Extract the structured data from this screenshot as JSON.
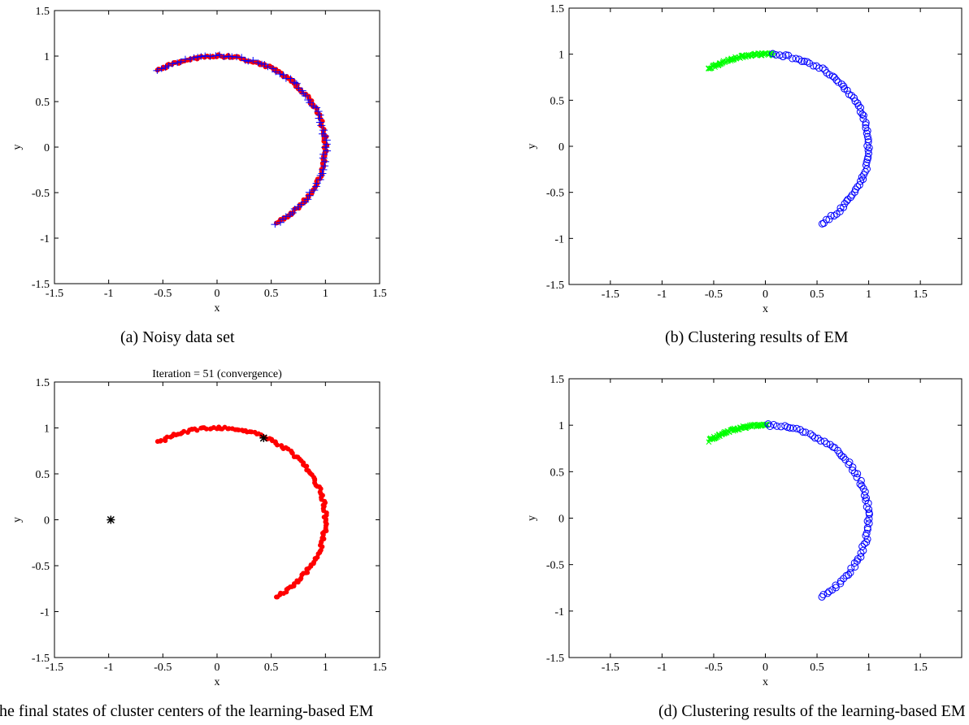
{
  "colors": {
    "red": "#ff0000",
    "blue": "#0000ff",
    "green": "#00ff00",
    "black": "#000000",
    "axis": "#000000"
  },
  "captions": {
    "a": "(a) Noisy data set",
    "b": "(b) Clustering results of EM",
    "c": "(c) The final states of cluster centers of the learning-based EM",
    "d": "(d) Clustering results of the learning-based EM"
  },
  "chart_data": [
    {
      "id": "a",
      "type": "scatter",
      "title": "",
      "xlabel": "x",
      "ylabel": "y",
      "xlim": [
        -1.5,
        1.5
      ],
      "ylim": [
        -1.5,
        1.5
      ],
      "xticks": [
        -1.5,
        -1,
        -0.5,
        0,
        0.5,
        1,
        1.5
      ],
      "yticks": [
        -1.5,
        -1,
        -0.5,
        0,
        0.5,
        1,
        1.5
      ],
      "grid": false,
      "series": [
        {
          "marker": "dot",
          "color": "red",
          "arc": {
            "t0": 2.15,
            "t1": -1.0,
            "n": 150,
            "r": 1.0
          }
        },
        {
          "marker": "plus",
          "color": "blue",
          "arc": {
            "t0": 2.15,
            "t1": -1.0,
            "n": 80,
            "r": 1.0
          }
        }
      ],
      "annotations": [
        {
          "text": "-1.5",
          "x": -1.5,
          "y": -1.5
        }
      ]
    },
    {
      "id": "b",
      "type": "scatter",
      "title": "",
      "xlabel": "x",
      "ylabel": "y",
      "xlim": [
        -1.9,
        1.9
      ],
      "ylim": [
        -1.5,
        1.5
      ],
      "xticks": [
        -1.5,
        -1,
        -0.5,
        0,
        0.5,
        1,
        1.5
      ],
      "yticks": [
        -1.5,
        -1,
        -0.5,
        0,
        0.5,
        1,
        1.5
      ],
      "grid": false,
      "series": [
        {
          "marker": "cross",
          "color": "green",
          "arc": {
            "t0": 2.15,
            "t1": 1.5,
            "n": 90,
            "r": 1.0,
            "from_start": true
          }
        },
        {
          "marker": "circle",
          "color": "blue",
          "arc": {
            "t0": 1.5,
            "t1": -1.0,
            "n": 80,
            "r": 1.0
          }
        }
      ]
    },
    {
      "id": "c",
      "type": "scatter",
      "title": "Iteration = 51 (convergence)",
      "xlabel": "x",
      "ylabel": "y",
      "xlim": [
        -1.5,
        1.5
      ],
      "ylim": [
        -1.5,
        1.5
      ],
      "xticks": [
        -1.5,
        -1,
        -0.5,
        0,
        0.5,
        1,
        1.5
      ],
      "yticks": [
        -1.5,
        -1,
        -0.5,
        0,
        0.5,
        1,
        1.5
      ],
      "grid": false,
      "series": [
        {
          "marker": "dot",
          "color": "red",
          "arc": {
            "t0": 2.15,
            "t1": -1.0,
            "n": 150,
            "r": 1.0
          }
        },
        {
          "marker": "star",
          "color": "black",
          "points": [
            [
              -0.98,
              0.0
            ],
            [
              0.43,
              0.89
            ]
          ]
        }
      ]
    },
    {
      "id": "d",
      "type": "scatter",
      "title": "",
      "xlabel": "x",
      "ylabel": "y",
      "xlim": [
        -1.9,
        1.9
      ],
      "ylim": [
        -1.5,
        1.5
      ],
      "xticks": [
        -1.5,
        -1,
        -0.5,
        0,
        0.5,
        1,
        1.5
      ],
      "yticks": [
        -1.5,
        -1,
        -0.5,
        0,
        0.5,
        1,
        1.5
      ],
      "grid": false,
      "series": [
        {
          "marker": "cross",
          "color": "green",
          "arc": {
            "t0": 2.15,
            "t1": 1.55,
            "n": 90,
            "r": 1.0,
            "from_start": true
          }
        },
        {
          "marker": "circle",
          "color": "blue",
          "arc": {
            "t0": 1.55,
            "t1": -1.0,
            "n": 80,
            "r": 1.0
          }
        }
      ]
    }
  ]
}
